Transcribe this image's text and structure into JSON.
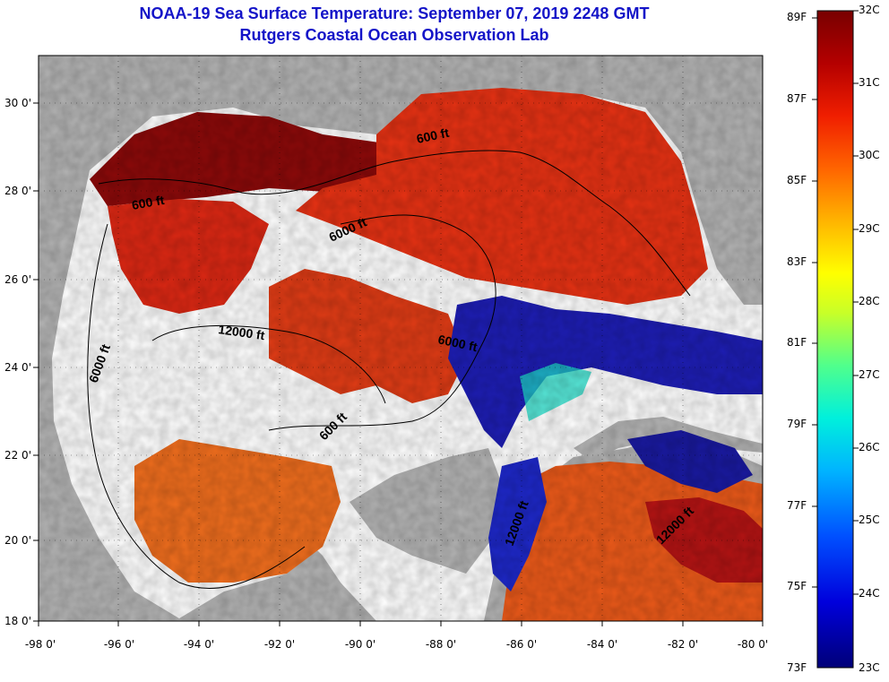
{
  "header": {
    "title": "NOAA-19 Sea Surface Temperature:  September 07, 2019 2248 GMT",
    "subtitle": "Rutgers Coastal Ocean Observation Lab"
  },
  "map": {
    "x_ticks": [
      "-98 0'",
      "-96 0'",
      "-94 0'",
      "-92 0'",
      "-90 0'",
      "-88 0'",
      "-86 0'",
      "-84 0'",
      "-82 0'",
      "-80 0'"
    ],
    "y_ticks": [
      "30 0'",
      "28 0'",
      "26 0'",
      "24 0'",
      "22 0'",
      "20 0'",
      "18 0'"
    ],
    "contour_labels": [
      "600 ft",
      "600 ft",
      "6000 ft",
      "12000 ft",
      "6000 ft",
      "6000 ft",
      "600 ft",
      "12000 ft",
      "12000 ft"
    ],
    "colors": {
      "land": "#b4b4b4",
      "cloud": "#ffffff",
      "hot": "#8c0a0a",
      "warm": "#e63214",
      "mid": "#f06e1e",
      "cool": "#1e1eb4",
      "teal": "#1edcc8"
    }
  },
  "colorbar": {
    "f_labels": [
      "89F",
      "87F",
      "85F",
      "83F",
      "81F",
      "79F",
      "77F",
      "75F",
      "73F"
    ],
    "c_labels": [
      "32C",
      "31C",
      "30C",
      "29C",
      "28C",
      "27C",
      "26C",
      "25C",
      "24C",
      "23C"
    ]
  }
}
